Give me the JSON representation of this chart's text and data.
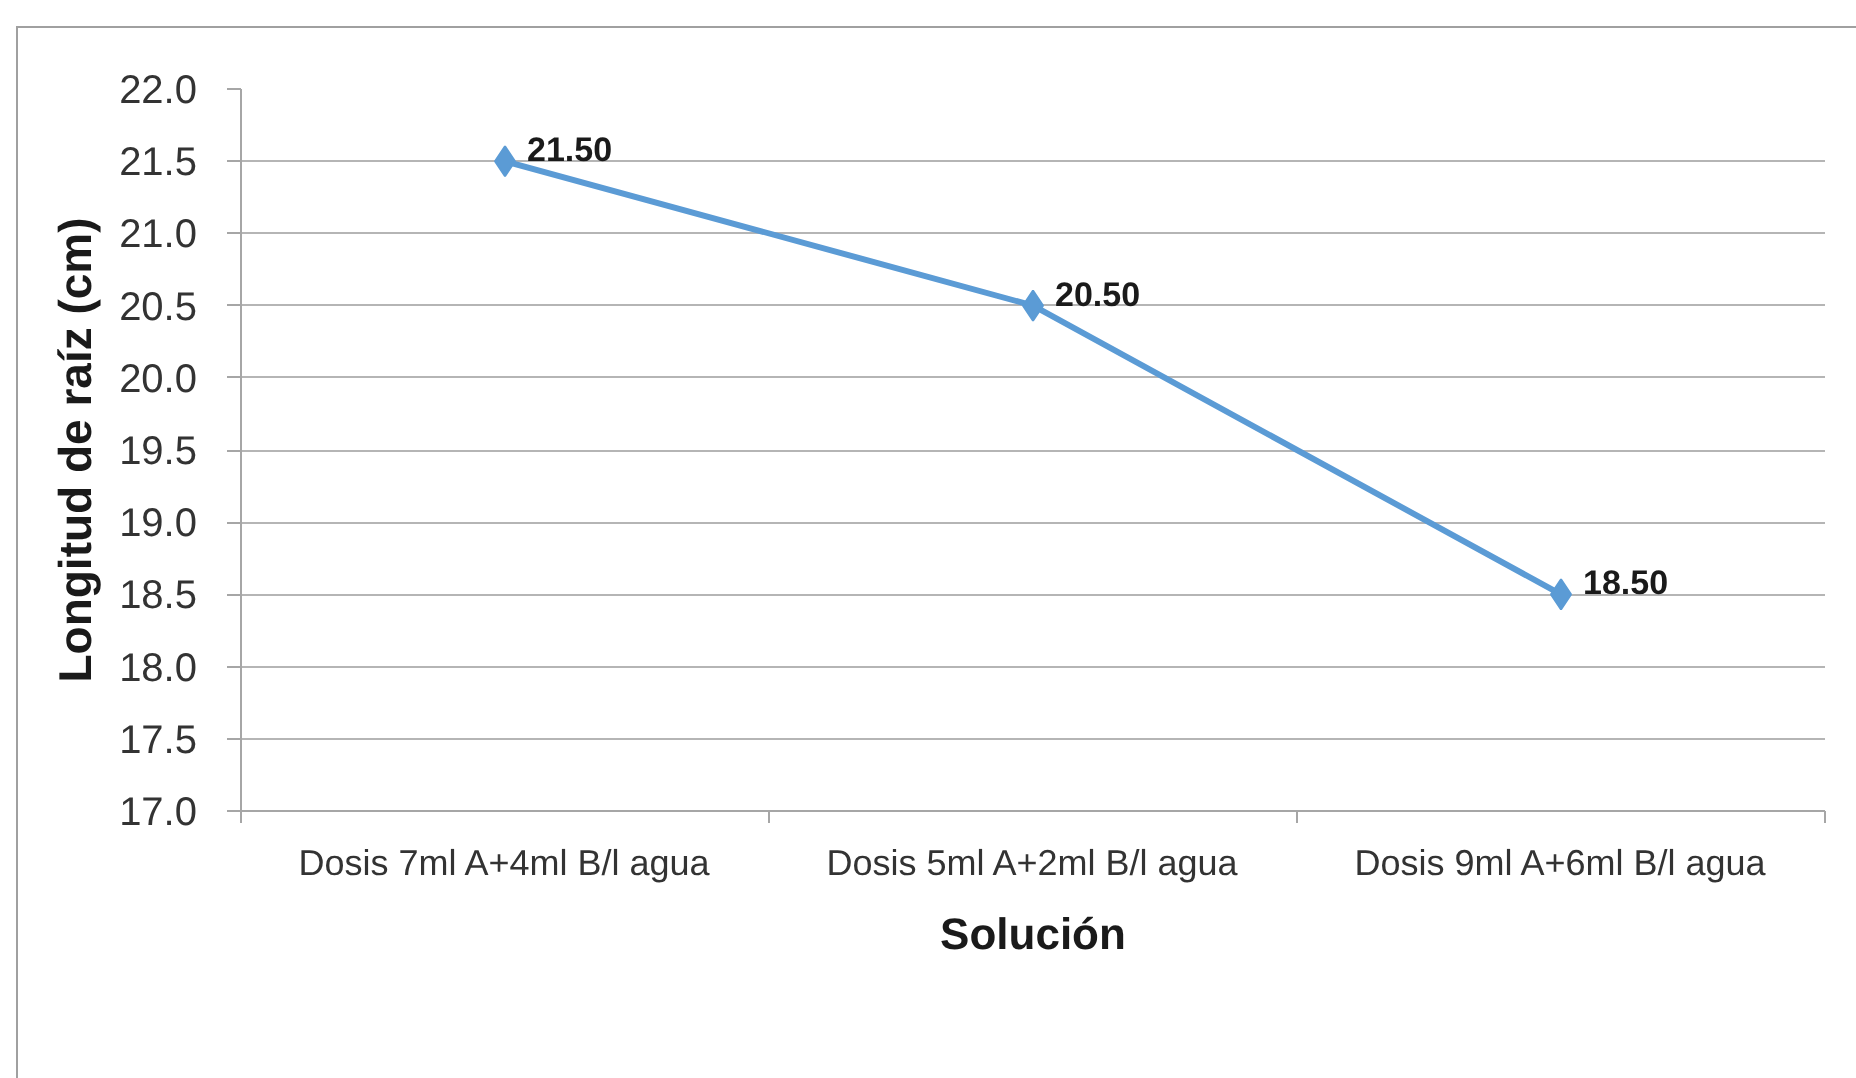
{
  "chart_data": {
    "type": "line",
    "xlabel": "Solución",
    "ylabel": "Longitud de raíz (cm)",
    "categories": [
      "Dosis 7ml A+4ml B/l agua",
      "Dosis 5ml A+2ml B/l agua",
      "Dosis 9ml A+6ml B/l agua"
    ],
    "series": [
      {
        "color": "#5b9bd5",
        "values": [
          21.5,
          20.5,
          18.5
        ],
        "value_labels": [
          "21.50",
          "20.50",
          "18.50"
        ]
      }
    ],
    "ylim": [
      17,
      22
    ],
    "yticks": [
      {
        "value": 17,
        "label": "17.0"
      },
      17.5,
      {
        "value": 18,
        "label": "18.0"
      },
      18.5,
      {
        "value": 19,
        "label": "19.0"
      },
      19.5,
      {
        "value": 20,
        "label": "20.0"
      },
      20.5,
      {
        "value": 21,
        "label": "21.0"
      },
      21.5,
      {
        "value": 22,
        "label": "22.0"
      }
    ],
    "grid": "y",
    "marker": "diamond",
    "line_style": "solid"
  }
}
